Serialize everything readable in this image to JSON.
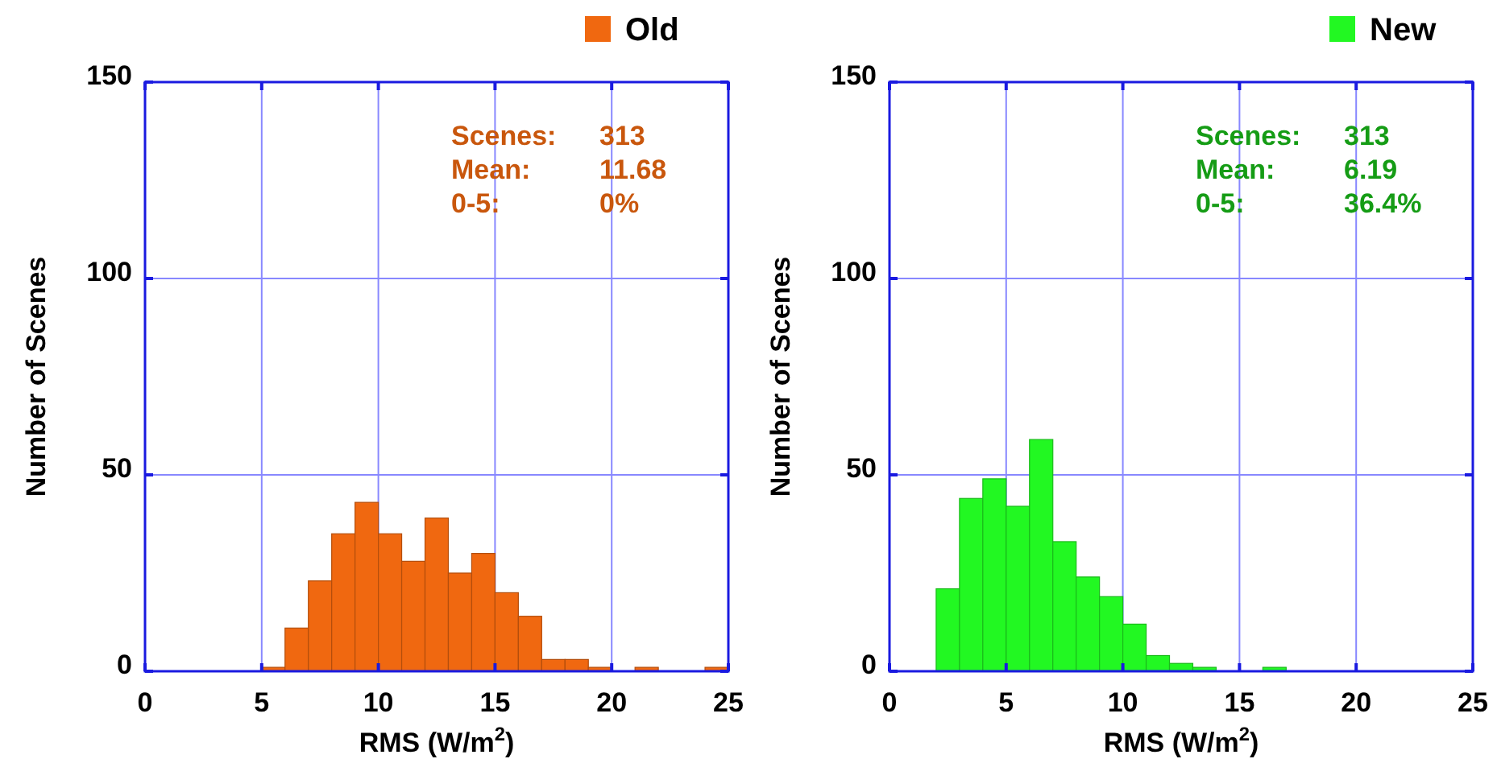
{
  "chart_data": [
    {
      "type": "histogram",
      "xlabel": "RMS (W/m$^{2}$)",
      "ylabel": "Number of Scenes",
      "bins": [
        5,
        6,
        7,
        8,
        9,
        10,
        11,
        12,
        13,
        14,
        15,
        16,
        17,
        18,
        19,
        20,
        21,
        22,
        23,
        24,
        25
      ],
      "series": [
        {
          "name": "Old",
          "color": "#f06810",
          "values": [
            1,
            11,
            23,
            35,
            43,
            35,
            28,
            39,
            25,
            30,
            20,
            14,
            3,
            3,
            1,
            0,
            1,
            0,
            0,
            1
          ]
        }
      ],
      "xlim": [
        0,
        25
      ],
      "ylim": [
        0,
        150
      ],
      "xticks": [
        0,
        5,
        10,
        15,
        20,
        25
      ],
      "yticks": [
        0,
        50,
        100,
        150
      ],
      "grid": true,
      "legend": "top",
      "annotations": [
        "Scenes: 313",
        "Mean: 11.68",
        "0-5: 0%"
      ]
    },
    {
      "type": "histogram",
      "xlabel": "RMS (W/m$^{2}$)",
      "ylabel": "Number of Scenes",
      "bins": [
        2,
        3,
        4,
        5,
        6,
        7,
        8,
        9,
        10,
        11,
        12,
        13,
        14,
        15,
        16,
        17
      ],
      "series": [
        {
          "name": "New",
          "color": "#22f822",
          "values": [
            21,
            44,
            49,
            42,
            59,
            33,
            24,
            19,
            12,
            4,
            2,
            1,
            0,
            0,
            1
          ]
        }
      ],
      "xlim": [
        0,
        25
      ],
      "ylim": [
        0,
        150
      ],
      "xticks": [
        0,
        5,
        10,
        15,
        20,
        25
      ],
      "yticks": [
        0,
        50,
        100,
        150
      ],
      "grid": true,
      "legend": "top",
      "annotations": [
        "Scenes: 313",
        "Mean: 6.19",
        "0-5: 36.4%"
      ]
    }
  ]
}
